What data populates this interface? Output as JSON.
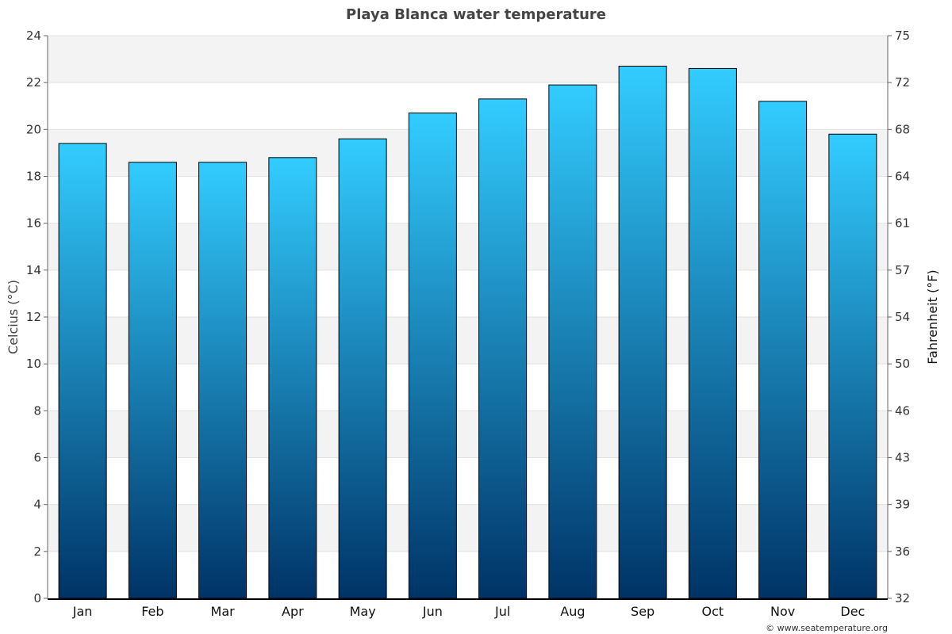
{
  "chart_data": {
    "type": "bar",
    "title": "Playa Blanca water temperature",
    "categories": [
      "Jan",
      "Feb",
      "Mar",
      "Apr",
      "May",
      "Jun",
      "Jul",
      "Aug",
      "Sep",
      "Oct",
      "Nov",
      "Dec"
    ],
    "values": [
      19.4,
      18.6,
      18.6,
      18.8,
      19.6,
      20.7,
      21.3,
      21.9,
      22.7,
      22.6,
      21.2,
      19.8
    ],
    "ylabel": "Celcius (°C)",
    "y2label": "Fahrenheit (°F)",
    "ylim": [
      0,
      24
    ],
    "yticks": [
      "0",
      "2",
      "4",
      "6",
      "8",
      "10",
      "12",
      "14",
      "16",
      "18",
      "20",
      "22",
      "24"
    ],
    "y2ticks": [
      "32",
      "36",
      "39",
      "43",
      "46",
      "50",
      "54",
      "57",
      "61",
      "64",
      "68",
      "72",
      "75"
    ],
    "grid": true,
    "bar_color_top": "#33ccff",
    "bar_color_bottom": "#003366",
    "band_color": "#f3f3f3"
  },
  "credit": "© www.seatemperature.org"
}
